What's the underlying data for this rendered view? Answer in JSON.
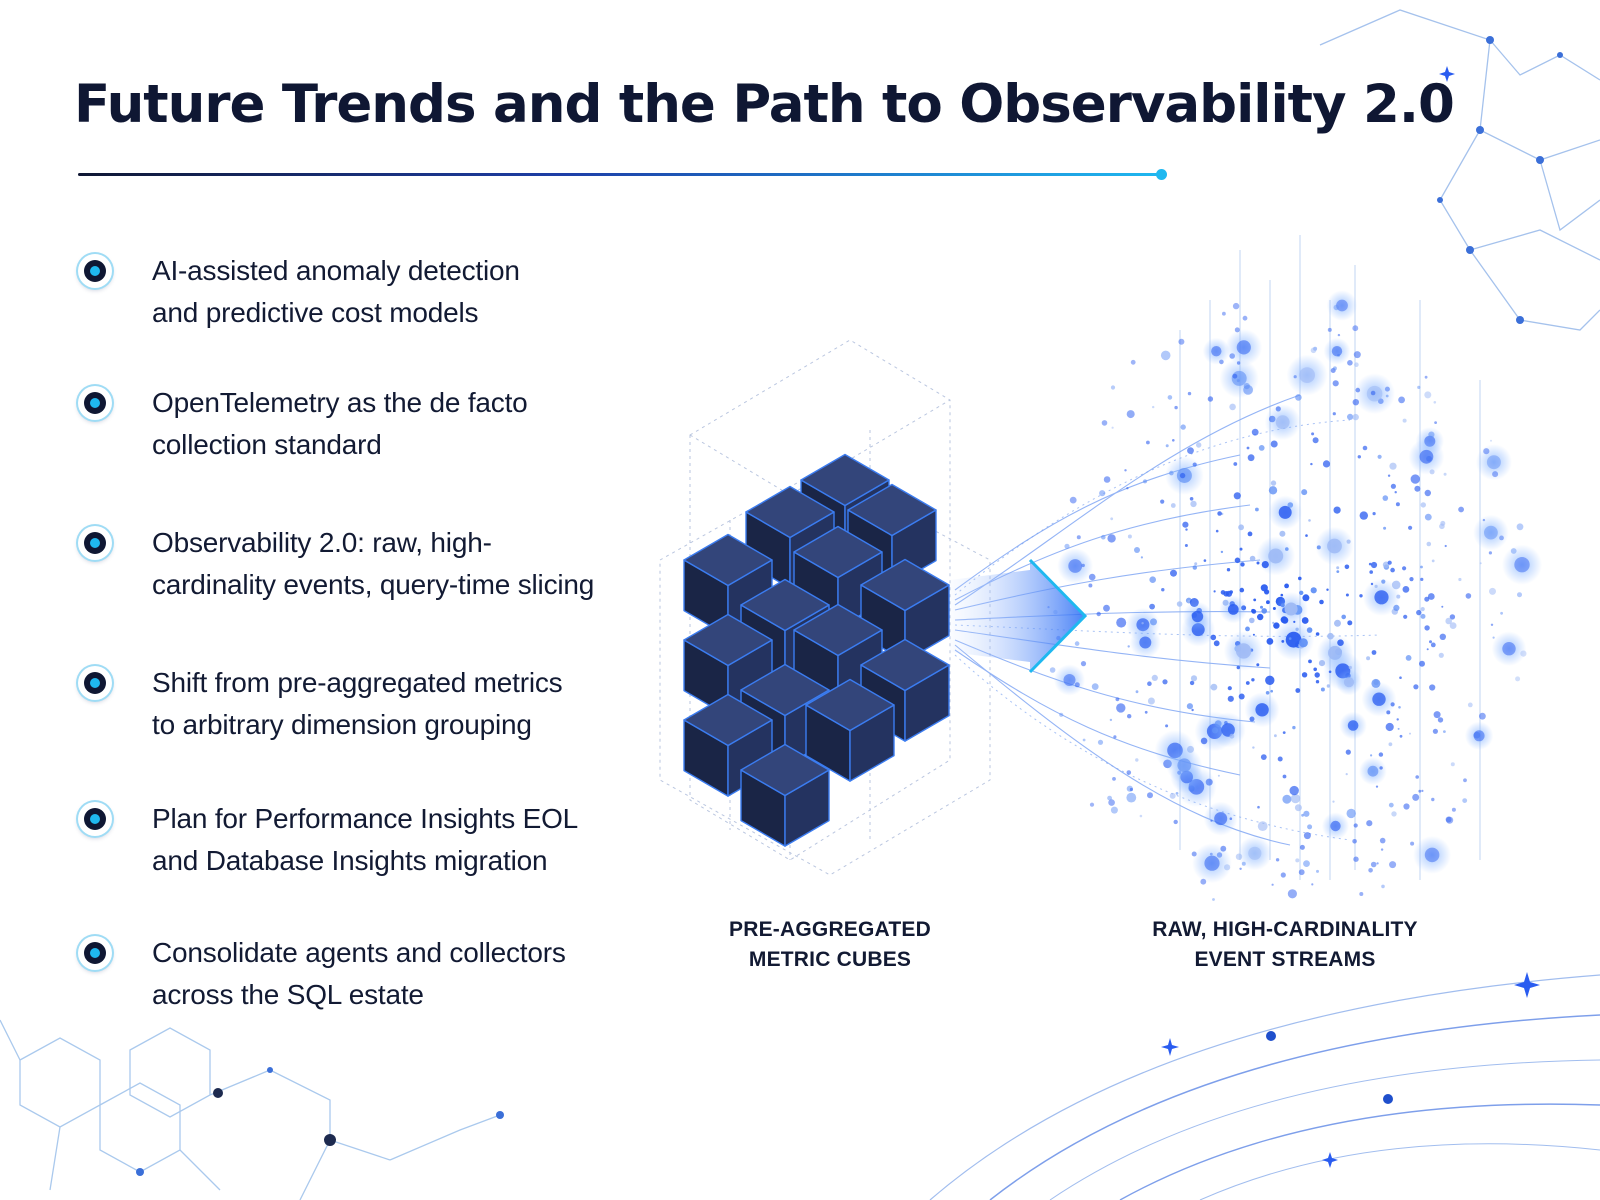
{
  "title": "Future Trends and the Path to Observability 2.0",
  "bullets": [
    {
      "line1": "AI-assisted anomaly detection",
      "line2": "and predictive cost models"
    },
    {
      "line1": "OpenTelemetry as the de facto",
      "line2": "collection standard"
    },
    {
      "line1": "Observability 2.0: raw, high-",
      "line2": "cardinality events, query-time slicing"
    },
    {
      "line1": "Shift from pre-aggregated metrics",
      "line2": "to arbitrary dimension grouping"
    },
    {
      "line1": "Plan for Performance Insights EOL",
      "line2": "and Database Insights migration"
    },
    {
      "line1": "Consolidate agents and collectors",
      "line2": "across the SQL estate"
    }
  ],
  "illustration": {
    "left_caption": {
      "line1": "PRE-AGGREGATED",
      "line2": "METRIC CUBES"
    },
    "right_caption": {
      "line1": "RAW, HIGH-CARDINALITY",
      "line2": "EVENT STREAMS"
    }
  },
  "colors": {
    "navy": "#0f1733",
    "cube_face": "#1d2a4f",
    "accent_blue": "#2a5cf0",
    "accent_cyan": "#1fb8f0"
  },
  "icons": [
    "bullet-target-icon",
    "metric-cube-icon",
    "transform-arrow-icon",
    "event-particle-icon"
  ]
}
